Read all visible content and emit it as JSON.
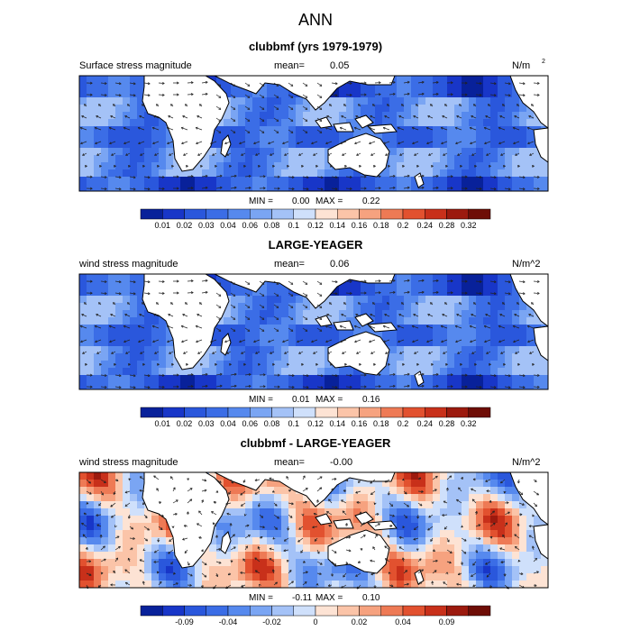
{
  "figure": {
    "title": "ANN"
  },
  "chart_data": [
    {
      "type": "heatmap",
      "title": "clubbmf (yrs 1979-1979)",
      "left_label": "Surface stress magnitude",
      "mean_label": "mean=",
      "mean_value": "0.05",
      "units": "N/m",
      "units_sup": "2",
      "min_label": "MIN =",
      "min_value": "0.00",
      "max_label": "MAX =",
      "max_value": "0.22",
      "colorbar_ticks": [
        "0.01",
        "0.02",
        "0.03",
        "0.04",
        "0.06",
        "0.08",
        "0.1",
        "0.12",
        "0.14",
        "0.16",
        "0.18",
        "0.2",
        "0.24",
        "0.28",
        "0.32"
      ],
      "colorbar_colors": [
        "#08219a",
        "#1836c8",
        "#2a57dc",
        "#3b6de6",
        "#5689ee",
        "#7aa5f3",
        "#a4c2f7",
        "#cfe0fb",
        "#fde3d4",
        "#fbc4a8",
        "#f6a27f",
        "#ee7a55",
        "#e2512f",
        "#c8301a",
        "#9c1a0e",
        "#6e0d06"
      ]
    },
    {
      "type": "heatmap",
      "title": "LARGE-YEAGER",
      "left_label": "wind stress magnitude",
      "mean_label": "mean=",
      "mean_value": "0.06",
      "units": "N/m^2",
      "min_label": "MIN =",
      "min_value": "0.01",
      "max_label": "MAX =",
      "max_value": "0.16",
      "colorbar_ticks": [
        "0.01",
        "0.02",
        "0.03",
        "0.04",
        "0.06",
        "0.08",
        "0.1",
        "0.12",
        "0.14",
        "0.16",
        "0.18",
        "0.2",
        "0.24",
        "0.28",
        "0.32"
      ],
      "colorbar_colors": [
        "#08219a",
        "#1836c8",
        "#2a57dc",
        "#3b6de6",
        "#5689ee",
        "#7aa5f3",
        "#a4c2f7",
        "#cfe0fb",
        "#fde3d4",
        "#fbc4a8",
        "#f6a27f",
        "#ee7a55",
        "#e2512f",
        "#c8301a",
        "#9c1a0e",
        "#6e0d06"
      ]
    },
    {
      "type": "heatmap",
      "title": "clubbmf - LARGE-YEAGER",
      "left_label": "wind stress magnitude",
      "mean_label": "mean=",
      "mean_value": "-0.00",
      "units": "N/m^2",
      "min_label": "MIN =",
      "min_value": "-0.11",
      "max_label": "MAX =",
      "max_value": "0.10",
      "colorbar_ticks": [
        "-0.09",
        "-0.04",
        "-0.02",
        "0",
        "0.02",
        "0.04",
        "0.09"
      ],
      "colorbar_colors": [
        "#08219a",
        "#1836c8",
        "#2a57dc",
        "#3b6de6",
        "#5689ee",
        "#7aa5f3",
        "#a4c2f7",
        "#cfe0fb",
        "#fde3d4",
        "#fbc4a8",
        "#f6a27f",
        "#ee7a55",
        "#e2512f",
        "#c8301a",
        "#9c1a0e",
        "#6e0d06"
      ]
    }
  ]
}
